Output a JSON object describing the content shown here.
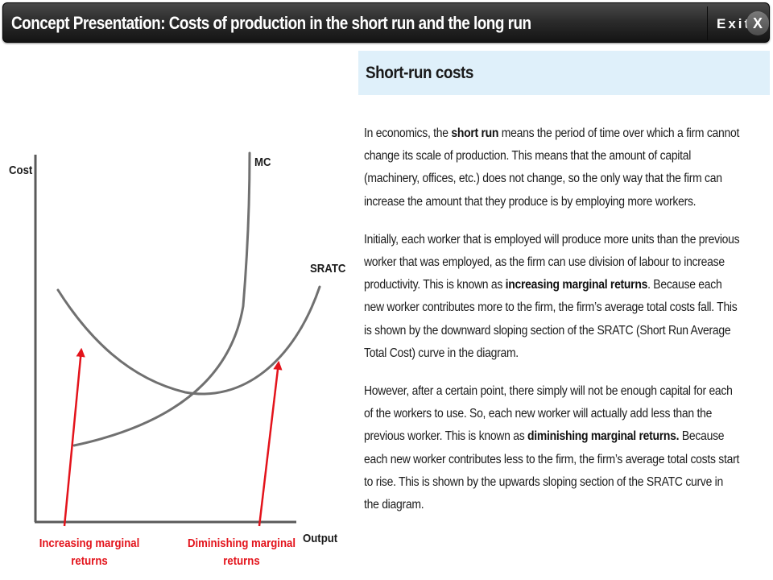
{
  "window": {
    "title": "Concept Presentation: Costs of production in the short run and the long run",
    "exit_label": "Exit",
    "close_label": "X"
  },
  "section": {
    "title": "Short-run costs"
  },
  "paragraphs": [
    [
      {
        "t": "In economics, the "
      },
      {
        "t": "short run",
        "b": true
      },
      {
        "t": " means the period of time over which a firm cannot change its scale of production. This means that the amount of capital (machinery, offices, etc.) does not change, so the only way that the firm can increase the amount that they produce is by employing more workers."
      }
    ],
    [
      {
        "t": "Initially, each worker that is employed will produce more units than the previous worker that was employed, as the firm can use division of labour to increase productivity. This is known as "
      },
      {
        "t": "increasing marginal returns",
        "b": true
      },
      {
        "t": ". Because each new worker contributes more to the firm, the firm’s average total costs fall. This is shown by the downward sloping section of the SRATC (Short Run Average Total Cost) curve in the diagram."
      }
    ],
    [
      {
        "t": "However, after a certain point, there simply will not be enough capital for each of the workers to use. So, each new worker will actually add less than the previous worker. This is known as "
      },
      {
        "t": "diminishing marginal returns.",
        "b": true
      },
      {
        "t": " Because each new worker contributes less to the firm, the firm’s average total costs start to rise. This is shown by the upwards sloping section of the SRATC curve in the diagram."
      }
    ]
  ],
  "diagram": {
    "y_axis_label": "Cost",
    "x_axis_label": "Output",
    "mc_label": "MC",
    "sratc_label": "SRATC",
    "annotation_left": [
      "Increasing marginal",
      "returns"
    ],
    "annotation_right": [
      "Diminishing marginal",
      "returns"
    ],
    "annotation_color": "#e3131b",
    "curve_color": "#707070",
    "axis_color": "#5a5a5a"
  }
}
